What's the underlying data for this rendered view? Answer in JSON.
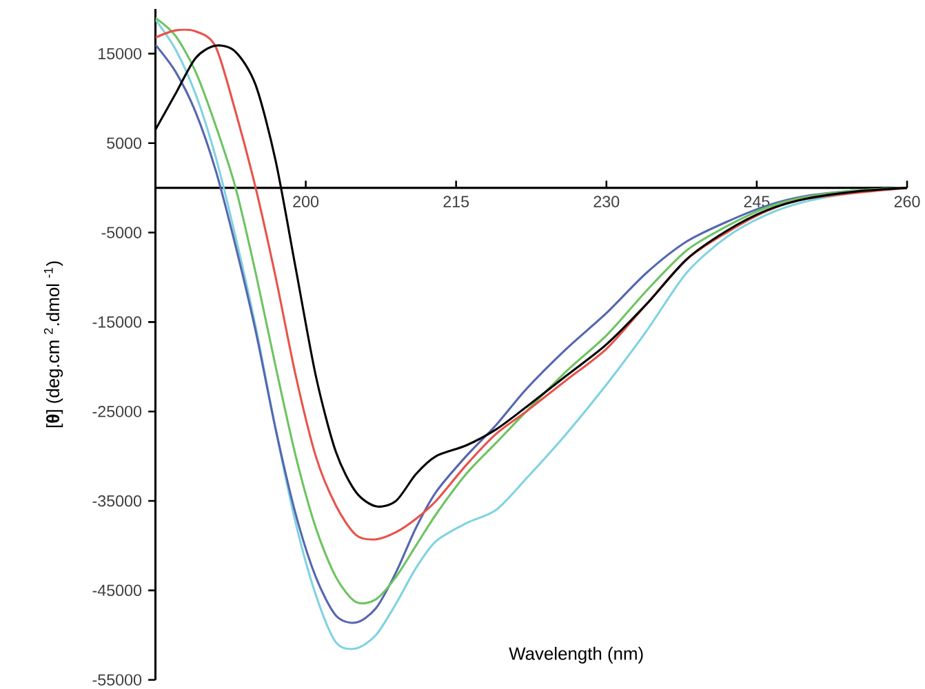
{
  "chart_data": {
    "type": "line",
    "xlabel": "Wavelength (nm)",
    "ylabel": "[**θ**] (deg.cm $^{2}$.dmol $^{-1}$)",
    "xlim": [
      185,
      260
    ],
    "ylim": [
      -55000,
      20000
    ],
    "xticks": [
      200,
      215,
      230,
      245,
      260
    ],
    "yticks": [
      -55000,
      -45000,
      -35000,
      -25000,
      -15000,
      -5000,
      5000,
      15000
    ],
    "x": [
      185,
      187,
      189,
      191,
      193,
      195,
      197,
      199,
      201,
      203,
      205,
      207,
      209,
      211,
      213,
      216,
      219,
      222,
      226,
      230,
      234,
      238,
      242,
      246,
      250,
      255,
      260
    ],
    "series": [
      {
        "color": "#7fd3e0",
        "values": [
          18800,
          15500,
          10500,
          3500,
          -5500,
          -15500,
          -27000,
          -37500,
          -45500,
          -50800,
          -51500,
          -50000,
          -46500,
          -42500,
          -39500,
          -37500,
          -36000,
          -32500,
          -27500,
          -22000,
          -16000,
          -9500,
          -5500,
          -3000,
          -1500,
          -500,
          0
        ]
      },
      {
        "color": "#5566b0",
        "values": [
          16000,
          13000,
          8500,
          2000,
          -6500,
          -16000,
          -27000,
          -36500,
          -43500,
          -47800,
          -48600,
          -47000,
          -43000,
          -38000,
          -34000,
          -30000,
          -26500,
          -22500,
          -18000,
          -14000,
          -9500,
          -6000,
          -3800,
          -2000,
          -900,
          -300,
          0
        ]
      },
      {
        "color": "#6cc461",
        "values": [
          19000,
          17000,
          13000,
          7000,
          0,
          -9500,
          -20000,
          -30000,
          -38000,
          -43500,
          -46300,
          -46000,
          -43500,
          -40000,
          -36500,
          -32000,
          -28500,
          -25000,
          -20500,
          -16500,
          -11500,
          -7000,
          -4300,
          -2200,
          -1000,
          -300,
          0
        ]
      },
      {
        "color": "#e8524a",
        "values": [
          16800,
          17600,
          17500,
          15800,
          8500,
          0,
          -10000,
          -21000,
          -30000,
          -35500,
          -38800,
          -39300,
          -38500,
          -37000,
          -35000,
          -31000,
          -27500,
          -25000,
          -21500,
          -18000,
          -13000,
          -8000,
          -5000,
          -2600,
          -1200,
          null,
          0
        ]
      },
      {
        "color": "#000000",
        "values": [
          6500,
          10500,
          14500,
          15900,
          15200,
          11500,
          3000,
          -9000,
          -21000,
          -29500,
          -34000,
          -35600,
          -35000,
          -32000,
          -30000,
          -28800,
          -27000,
          -24500,
          -21000,
          -17500,
          -13000,
          -8000,
          -4800,
          -2500,
          -1200,
          -400,
          0
        ]
      }
    ]
  }
}
